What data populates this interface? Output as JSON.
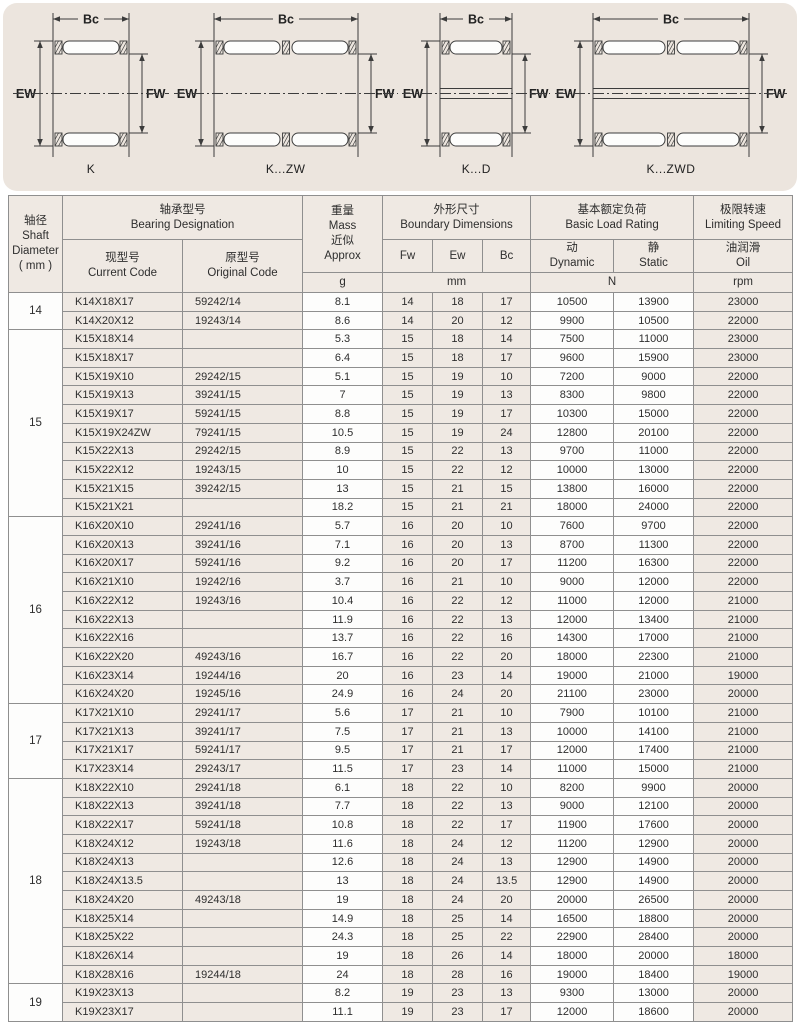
{
  "colors": {
    "panel_bg": "#ece5de",
    "cell_beige": "#efe9e3",
    "cell_white": "#fdfdfc",
    "border": "#8f8f8f",
    "line": "#3c3c3c",
    "text": "#2e2e2e"
  },
  "diagrams": {
    "bc": "Bc",
    "ew": "EW",
    "fw": "FW",
    "labels": [
      "K",
      "K...ZW",
      "K...D",
      "K...ZWD"
    ]
  },
  "table": {
    "headers": {
      "shaft": "轴径\nShaft\nDiameter\n( mm )",
      "designation": "轴承型号\nBearing Designation",
      "current": "现型号\nCurrent Code",
      "original": "原型号\nOriginal Code",
      "mass": "重量\nMass\n近似\nApprox",
      "mass_unit": "g",
      "boundary": "外形尺寸\nBoundary Dimensions",
      "fw": "Fw",
      "ew": "Ew",
      "bc": "Bc",
      "dim_unit": "mm",
      "load": "基本额定负荷\nBasic Load Rating",
      "dynamic": "动\nDynamic",
      "static": "静\nStatic",
      "load_unit": "N",
      "speed": "极限转速\nLimiting Speed",
      "oil": "油润滑\nOil",
      "speed_unit": "rpm"
    },
    "sections": [
      {
        "shaft": "14",
        "rows": [
          [
            "K14X18X17",
            "59242/14",
            "8.1",
            "14",
            "18",
            "17",
            "10500",
            "13900",
            "23000"
          ],
          [
            "K14X20X12",
            "19243/14",
            "8.6",
            "14",
            "20",
            "12",
            "9900",
            "10500",
            "22000"
          ]
        ]
      },
      {
        "shaft": "15",
        "rows": [
          [
            "K15X18X14",
            "",
            "5.3",
            "15",
            "18",
            "14",
            "7500",
            "11000",
            "23000"
          ],
          [
            "K15X18X17",
            "",
            "6.4",
            "15",
            "18",
            "17",
            "9600",
            "15900",
            "23000"
          ],
          [
            "K15X19X10",
            "29242/15",
            "5.1",
            "15",
            "19",
            "10",
            "7200",
            "9000",
            "22000"
          ],
          [
            "K15X19X13",
            "39241/15",
            "7",
            "15",
            "19",
            "13",
            "8300",
            "9800",
            "22000"
          ],
          [
            "K15X19X17",
            "59241/15",
            "8.8",
            "15",
            "19",
            "17",
            "10300",
            "15000",
            "22000"
          ],
          [
            "K15X19X24ZW",
            "79241/15",
            "10.5",
            "15",
            "19",
            "24",
            "12800",
            "20100",
            "22000"
          ],
          [
            "K15X22X13",
            "29242/15",
            "8.9",
            "15",
            "22",
            "13",
            "9700",
            "11000",
            "22000"
          ],
          [
            "K15X22X12",
            "19243/15",
            "10",
            "15",
            "22",
            "12",
            "10000",
            "13000",
            "22000"
          ],
          [
            "K15X21X15",
            "39242/15",
            "13",
            "15",
            "21",
            "15",
            "13800",
            "16000",
            "22000"
          ],
          [
            "K15X21X21",
            "",
            "18.2",
            "15",
            "21",
            "21",
            "18000",
            "24000",
            "22000"
          ]
        ]
      },
      {
        "shaft": "16",
        "rows": [
          [
            "K16X20X10",
            "29241/16",
            "5.7",
            "16",
            "20",
            "10",
            "7600",
            "9700",
            "22000"
          ],
          [
            "K16X20X13",
            "39241/16",
            "7.1",
            "16",
            "20",
            "13",
            "8700",
            "11300",
            "22000"
          ],
          [
            "K16X20X17",
            "59241/16",
            "9.2",
            "16",
            "20",
            "17",
            "11200",
            "16300",
            "22000"
          ],
          [
            "K16X21X10",
            "19242/16",
            "3.7",
            "16",
            "21",
            "10",
            "9000",
            "12000",
            "22000"
          ],
          [
            "K16X22X12",
            "19243/16",
            "10.4",
            "16",
            "22",
            "12",
            "11000",
            "12000",
            "21000"
          ],
          [
            "K16X22X13",
            "",
            "11.9",
            "16",
            "22",
            "13",
            "12000",
            "13400",
            "21000"
          ],
          [
            "K16X22X16",
            "",
            "13.7",
            "16",
            "22",
            "16",
            "14300",
            "17000",
            "21000"
          ],
          [
            "K16X22X20",
            "49243/16",
            "16.7",
            "16",
            "22",
            "20",
            "18000",
            "22300",
            "21000"
          ],
          [
            "K16X23X14",
            "19244/16",
            "20",
            "16",
            "23",
            "14",
            "19000",
            "21000",
            "19000"
          ],
          [
            "K16X24X20",
            "19245/16",
            "24.9",
            "16",
            "24",
            "20",
            "21100",
            "23000",
            "20000"
          ]
        ]
      },
      {
        "shaft": "17",
        "rows": [
          [
            "K17X21X10",
            "29241/17",
            "5.6",
            "17",
            "21",
            "10",
            "7900",
            "10100",
            "21000"
          ],
          [
            "K17X21X13",
            "39241/17",
            "7.5",
            "17",
            "21",
            "13",
            "10000",
            "14100",
            "21000"
          ],
          [
            "K17X21X17",
            "59241/17",
            "9.5",
            "17",
            "21",
            "17",
            "12000",
            "17400",
            "21000"
          ],
          [
            "K17X23X14",
            "29243/17",
            "11.5",
            "17",
            "23",
            "14",
            "11000",
            "15000",
            "21000"
          ]
        ]
      },
      {
        "shaft": "18",
        "rows": [
          [
            "K18X22X10",
            "29241/18",
            "6.1",
            "18",
            "22",
            "10",
            "8200",
            "9900",
            "20000"
          ],
          [
            "K18X22X13",
            "39241/18",
            "7.7",
            "18",
            "22",
            "13",
            "9000",
            "12100",
            "20000"
          ],
          [
            "K18X22X17",
            "59241/18",
            "10.8",
            "18",
            "22",
            "17",
            "11900",
            "17600",
            "20000"
          ],
          [
            "K18X24X12",
            "19243/18",
            "11.6",
            "18",
            "24",
            "12",
            "11200",
            "12900",
            "20000"
          ],
          [
            "K18X24X13",
            "",
            "12.6",
            "18",
            "24",
            "13",
            "12900",
            "14900",
            "20000"
          ],
          [
            "K18X24X13.5",
            "",
            "13",
            "18",
            "24",
            "13.5",
            "12900",
            "14900",
            "20000"
          ],
          [
            "K18X24X20",
            "49243/18",
            "19",
            "18",
            "24",
            "20",
            "20000",
            "26500",
            "20000"
          ],
          [
            "K18X25X14",
            "",
            "14.9",
            "18",
            "25",
            "14",
            "16500",
            "18800",
            "20000"
          ],
          [
            "K18X25X22",
            "",
            "24.3",
            "18",
            "25",
            "22",
            "22900",
            "28400",
            "20000"
          ],
          [
            "K18X26X14",
            "",
            "19",
            "18",
            "26",
            "14",
            "18000",
            "20000",
            "18000"
          ],
          [
            "K18X28X16",
            "19244/18",
            "24",
            "18",
            "28",
            "16",
            "19000",
            "18400",
            "19000"
          ]
        ]
      },
      {
        "shaft": "19",
        "rows": [
          [
            "K19X23X13",
            "",
            "8.2",
            "19",
            "23",
            "13",
            "9300",
            "13000",
            "20000"
          ],
          [
            "K19X23X17",
            "",
            "11.1",
            "19",
            "23",
            "17",
            "12000",
            "18600",
            "20000"
          ]
        ]
      }
    ]
  }
}
